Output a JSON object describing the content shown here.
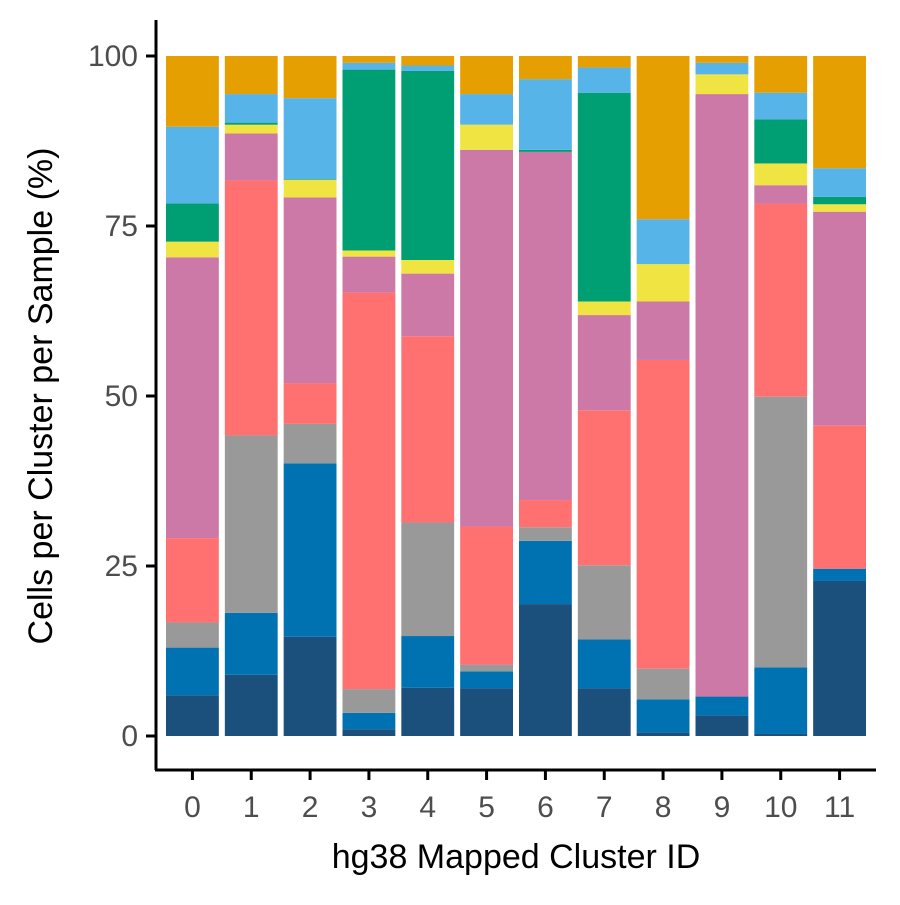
{
  "chart_data": {
    "type": "bar",
    "stacked": true,
    "percent": true,
    "title": "",
    "xlabel": "hg38 Mapped Cluster ID",
    "ylabel": "Cells per Cluster per Sample (%)",
    "ylim": [
      0,
      100
    ],
    "yticks": [
      0,
      25,
      50,
      75,
      100
    ],
    "ytick_labels": [
      "0",
      "25",
      "50",
      "75",
      "100"
    ],
    "grid": false,
    "legend": "none",
    "categories": [
      "0",
      "1",
      "2",
      "3",
      "4",
      "5",
      "6",
      "7",
      "8",
      "9",
      "10",
      "11"
    ],
    "series": [
      {
        "color": "#1b4f7c",
        "values": [
          6.0,
          9.0,
          14.6,
          1.0,
          7.1,
          7.0,
          19.4,
          7.0,
          0.5,
          3.0,
          0.3,
          22.8
        ]
      },
      {
        "color": "#0072b2",
        "values": [
          7.0,
          9.1,
          25.5,
          2.4,
          7.6,
          2.5,
          9.3,
          7.2,
          4.9,
          2.8,
          9.8,
          1.8
        ]
      },
      {
        "color": "#999999",
        "values": [
          3.7,
          26.1,
          5.8,
          3.5,
          16.7,
          1.0,
          2.0,
          10.9,
          4.5,
          0.0,
          39.8,
          0.0
        ]
      },
      {
        "color": "#ff7171",
        "values": [
          12.4,
          37.5,
          6.0,
          58.3,
          27.4,
          20.3,
          4.0,
          22.8,
          45.4,
          0.0,
          28.4,
          21.1
        ]
      },
      {
        "color": "#cc79a7",
        "values": [
          41.3,
          6.9,
          27.3,
          5.3,
          9.2,
          55.4,
          51.2,
          14.0,
          8.6,
          88.6,
          2.7,
          31.4
        ]
      },
      {
        "color": "#f0e442",
        "values": [
          2.3,
          1.3,
          2.6,
          0.9,
          2.0,
          3.7,
          0.0,
          2.0,
          5.5,
          2.9,
          3.2,
          1.1
        ]
      },
      {
        "color": "#009e73",
        "values": [
          5.6,
          0.3,
          0.1,
          26.6,
          27.8,
          0.0,
          0.3,
          30.7,
          0.0,
          0.0,
          6.5,
          1.1
        ]
      },
      {
        "color": "#56b4e9",
        "values": [
          11.3,
          4.2,
          11.9,
          1.0,
          0.8,
          4.5,
          10.4,
          3.7,
          6.6,
          1.7,
          3.9,
          4.2
        ]
      },
      {
        "color": "#e69f00",
        "values": [
          10.4,
          5.6,
          6.2,
          1.0,
          1.4,
          5.6,
          3.4,
          1.7,
          24.0,
          1.0,
          5.4,
          16.5
        ]
      }
    ]
  }
}
